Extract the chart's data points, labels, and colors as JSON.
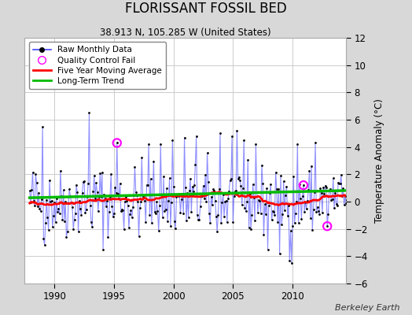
{
  "title": "FLORISSANT FOSSIL BED",
  "subtitle": "38.913 N, 105.285 W (United States)",
  "credit": "Berkeley Earth",
  "ylabel": "Temperature Anomaly (°C)",
  "ylim": [
    -6,
    12
  ],
  "yticks": [
    -6,
    -4,
    -2,
    0,
    2,
    4,
    6,
    8,
    10,
    12
  ],
  "xlim": [
    1987.5,
    2014.5
  ],
  "xticks": [
    1990,
    1995,
    2000,
    2005,
    2010
  ],
  "bg_color": "#d8d8d8",
  "plot_bg_color": "#ffffff",
  "grid_color": "#cccccc",
  "line_color": "#4444ff",
  "line_alpha": 0.6,
  "dot_color": "#000000",
  "ma_color": "#ff0000",
  "trend_color": "#00bb00",
  "qc_color": "#ff00ff",
  "seed": 42,
  "n_months": 324,
  "start_year": 1987.917,
  "qc_fail_indices": [
    88,
    276,
    300
  ]
}
